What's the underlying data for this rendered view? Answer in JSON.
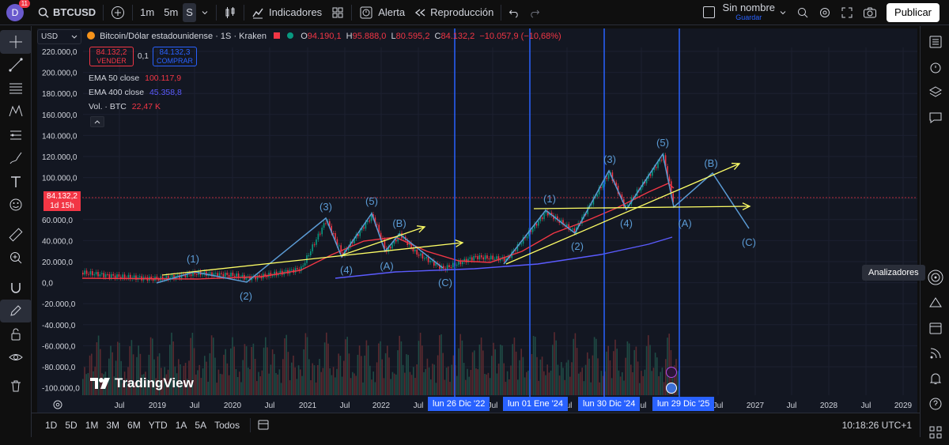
{
  "topbar": {
    "avatar_letter": "D",
    "badge": "11",
    "symbol": "BTCUSD",
    "tf": [
      "1m",
      "5m",
      "S"
    ],
    "indicators": "Indicadores",
    "alert": "Alerta",
    "replay": "Reproducción",
    "layout_name": "Sin nombre",
    "layout_saved": "Guardar",
    "publish": "Publicar"
  },
  "legend": {
    "title": "Bitcoin/Dólar estadounidense · 1S · Kraken",
    "o_label": "O",
    "o": "94.190,1",
    "h_label": "H",
    "h": "95.888,0",
    "l_label": "L",
    "l": "80.595,2",
    "c_label": "C",
    "c": "84.132,2",
    "chg": "−10.057,9 (−10,68%)"
  },
  "trade": {
    "sell_price": "84.132,2",
    "sell_label": "VENDER",
    "spread": "0,1",
    "buy_price": "84.132,3",
    "buy_label": "COMPRAR"
  },
  "indicators": [
    {
      "name": "EMA 50 close",
      "value": "100.117,9",
      "color": "#f23645"
    },
    {
      "name": "EMA 400 close",
      "value": "45.358,8",
      "color": "#5b5bff"
    },
    {
      "name": "Vol. · BTC",
      "value": "22,47 K",
      "color": "#f23645"
    }
  ],
  "currency": "USD",
  "price_axis": [
    "220.000,0",
    "200.000,0",
    "180.000,0",
    "160.000,0",
    "140.000,0",
    "120.000,0",
    "100.000,0",
    "60.000,0",
    "40.000,0",
    "20.000,0",
    "0,0",
    "-20.000,0",
    "-40.000,0",
    "-60.000,0",
    "-80.000,0",
    "-100.000,0"
  ],
  "last_price": {
    "price": "84.132,2",
    "countdown": "1d 15h"
  },
  "time_axis": [
    "Jul",
    "2019",
    "Jul",
    "2020",
    "Jul",
    "2021",
    "Jul",
    "2022",
    "Jul",
    "Jul",
    "Jul",
    "Jul",
    "Jul",
    "2027",
    "Jul",
    "2028",
    "Jul",
    "2029"
  ],
  "time_tags": [
    "lun 26 Dic '22",
    "lun 01 Ene '24",
    "lun 30 Dic '24",
    "lun 29 Dic '25"
  ],
  "waves": [
    "(1)",
    "(2)",
    "(3)",
    "(4)",
    "(5)",
    "(A)",
    "(B)",
    "(C)",
    "(1)",
    "(2)",
    "(3)",
    "(4)",
    "(5)",
    "(A)",
    "(B)",
    "(C)"
  ],
  "watermark": "TradingView",
  "tooltip": "Analizadores",
  "bottombar": {
    "ranges": [
      "1D",
      "5D",
      "1M",
      "3M",
      "6M",
      "YTD",
      "1A",
      "5A",
      "Todos"
    ],
    "clock": "10:18:26 UTC+1"
  },
  "colors": {
    "accent": "#2962ff",
    "down": "#f23645",
    "up": "#089981",
    "wave": "#5b9bd5",
    "trend": "#ffff66"
  }
}
